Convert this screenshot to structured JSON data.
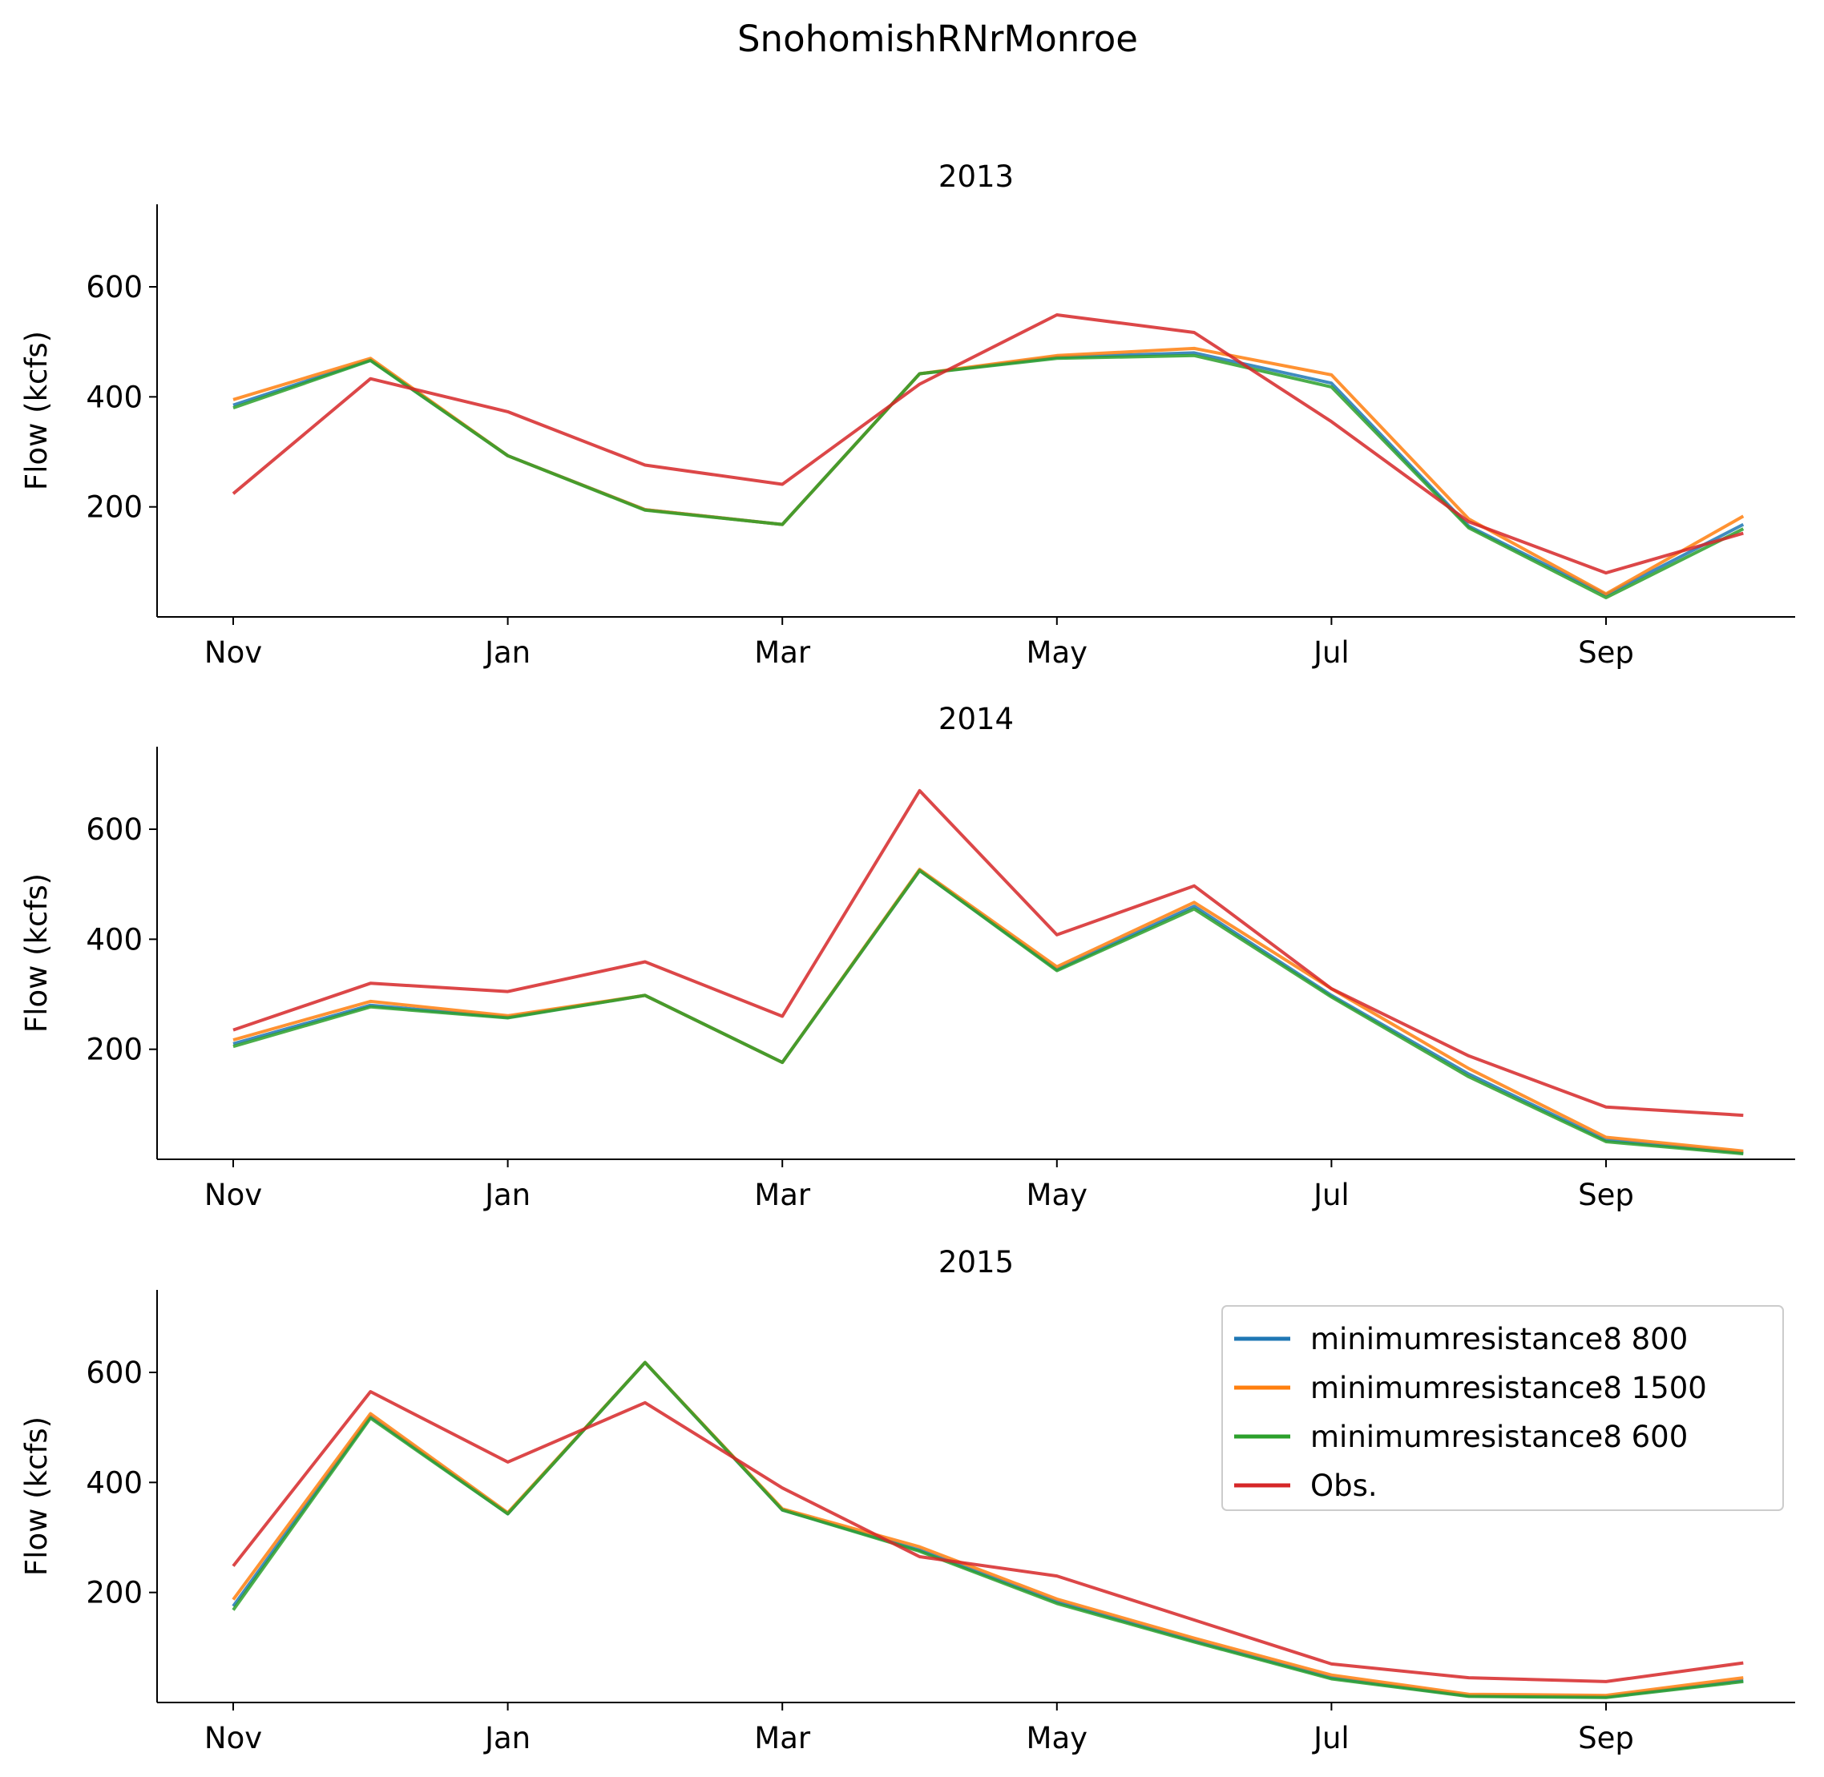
{
  "figure_title": "SnohomishRNrMonroe",
  "colors": {
    "minimumresistance8 800": "#1f77b4",
    "minimumresistance8 1500": "#ff7f0e",
    "minimumresistance8 600": "#2ca02c",
    "Obs.": "#d62728"
  },
  "legend": {
    "location": "upper right of bottom subplot",
    "entries": [
      "minimumresistance8 800",
      "minimumresistance8 1500",
      "minimumresistance8 600",
      "Obs."
    ]
  },
  "chart_data": [
    {
      "type": "line",
      "title": "2013",
      "ylabel": "Flow (kcfs)",
      "xlabel": "",
      "grid": false,
      "ylim": [
        0,
        750
      ],
      "yticks": [
        200,
        400,
        600
      ],
      "xtick_labels": [
        "Nov",
        "Jan",
        "Mar",
        "May",
        "Jul",
        "Sep"
      ],
      "x": [
        "Nov",
        "Dec",
        "Jan",
        "Feb",
        "Mar",
        "Apr",
        "May",
        "Jun",
        "Jul",
        "Aug",
        "Sep",
        "Oct"
      ],
      "series": [
        {
          "name": "minimumresistance8 800",
          "values": [
            385,
            467,
            293,
            195,
            168,
            442,
            472,
            480,
            425,
            165,
            40,
            168
          ]
        },
        {
          "name": "minimumresistance8 1500",
          "values": [
            395,
            470,
            293,
            195,
            168,
            442,
            475,
            488,
            440,
            178,
            42,
            183
          ]
        },
        {
          "name": "minimumresistance8 600",
          "values": [
            380,
            466,
            293,
            194,
            168,
            442,
            470,
            475,
            418,
            162,
            35,
            160
          ]
        },
        {
          "name": "Obs.",
          "values": [
            224,
            433,
            373,
            276,
            241,
            423,
            549,
            517,
            355,
            173,
            80,
            152
          ]
        }
      ]
    },
    {
      "type": "line",
      "title": "2014",
      "ylabel": "Flow (kcfs)",
      "xlabel": "",
      "grid": false,
      "ylim": [
        0,
        750
      ],
      "yticks": [
        200,
        400,
        600
      ],
      "xtick_labels": [
        "Nov",
        "Jan",
        "Mar",
        "May",
        "Jul",
        "Sep"
      ],
      "x": [
        "Nov",
        "Dec",
        "Jan",
        "Feb",
        "Mar",
        "Apr",
        "May",
        "Jun",
        "Jul",
        "Aug",
        "Sep",
        "Oct"
      ],
      "series": [
        {
          "name": "minimumresistance8 800",
          "values": [
            210,
            280,
            258,
            298,
            176,
            525,
            345,
            460,
            298,
            155,
            35,
            12
          ]
        },
        {
          "name": "minimumresistance8 1500",
          "values": [
            217,
            287,
            261,
            298,
            176,
            527,
            350,
            467,
            310,
            165,
            40,
            15
          ]
        },
        {
          "name": "minimumresistance8 600",
          "values": [
            205,
            277,
            257,
            298,
            176,
            525,
            343,
            455,
            295,
            150,
            32,
            10
          ]
        },
        {
          "name": "Obs.",
          "values": [
            235,
            320,
            305,
            359,
            260,
            670,
            408,
            497,
            310,
            188,
            95,
            80
          ]
        }
      ]
    },
    {
      "type": "line",
      "title": "2015",
      "ylabel": "Flow (kcfs)",
      "xlabel": "",
      "grid": false,
      "ylim": [
        0,
        750
      ],
      "yticks": [
        200,
        400,
        600
      ],
      "xtick_labels": [
        "Nov",
        "Jan",
        "Mar",
        "May",
        "Jul",
        "Sep"
      ],
      "x": [
        "Nov",
        "Dec",
        "Jan",
        "Feb",
        "Mar",
        "Apr",
        "May",
        "Jun",
        "Jul",
        "Aug",
        "Sep",
        "Oct"
      ],
      "series": [
        {
          "name": "minimumresistance8 800",
          "values": [
            175,
            520,
            343,
            618,
            350,
            277,
            183,
            112,
            45,
            12,
            10,
            40
          ]
        },
        {
          "name": "minimumresistance8 1500",
          "values": [
            187,
            525,
            345,
            618,
            352,
            283,
            188,
            117,
            50,
            15,
            13,
            45
          ]
        },
        {
          "name": "minimumresistance8 600",
          "values": [
            168,
            517,
            343,
            618,
            350,
            275,
            180,
            110,
            43,
            11,
            9,
            38
          ]
        },
        {
          "name": "Obs.",
          "values": [
            248,
            565,
            437,
            545,
            390,
            265,
            230,
            150,
            70,
            45,
            38,
            72
          ]
        }
      ]
    }
  ]
}
